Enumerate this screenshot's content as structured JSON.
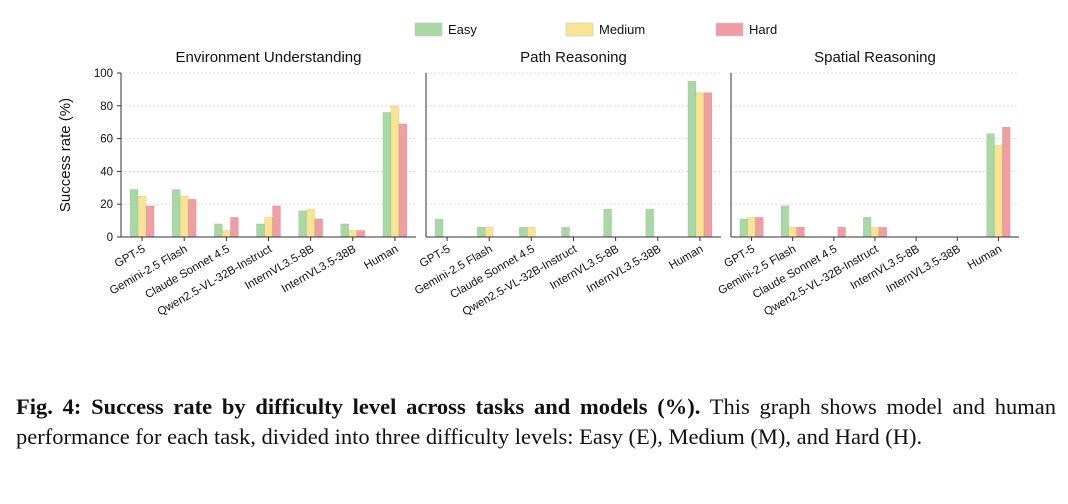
{
  "chart_data": {
    "type": "bar",
    "ylabel": "Success rate (%)",
    "ylim": [
      0,
      100
    ],
    "yticks": [
      0,
      20,
      40,
      60,
      80,
      100
    ],
    "categories": [
      "GPT-5",
      "Gemini-2.5 Flash",
      "Claude Sonnet 4.5",
      "Qwen2.5-VL-32B-Instruct",
      "InternVL3.5-8B",
      "InternVL3.5-38B",
      "Human"
    ],
    "legend": {
      "placement": "top-center",
      "entries": [
        {
          "name": "Easy",
          "color": "#a8d8a4"
        },
        {
          "name": "Medium",
          "color": "#fbe394"
        },
        {
          "name": "Hard",
          "color": "#ef9ea3"
        }
      ]
    },
    "panels": [
      {
        "title": "Environment Understanding",
        "series": [
          {
            "name": "Easy",
            "values": [
              29,
              29,
              8,
              8,
              16,
              8,
              76
            ]
          },
          {
            "name": "Medium",
            "values": [
              25,
              25,
              4,
              12,
              17,
              4,
              80
            ]
          },
          {
            "name": "Hard",
            "values": [
              19,
              23,
              12,
              19,
              11,
              4,
              69
            ]
          }
        ]
      },
      {
        "title": "Path Reasoning",
        "series": [
          {
            "name": "Easy",
            "values": [
              11,
              6,
              6,
              6,
              17,
              17,
              95
            ]
          },
          {
            "name": "Medium",
            "values": [
              0,
              6,
              6,
              0,
              0,
              0,
              88
            ]
          },
          {
            "name": "Hard",
            "values": [
              0,
              0,
              0,
              0,
              0,
              0,
              88
            ]
          }
        ]
      },
      {
        "title": "Spatial Reasoning",
        "series": [
          {
            "name": "Easy",
            "values": [
              11,
              19,
              0,
              12,
              0,
              0,
              63
            ]
          },
          {
            "name": "Medium",
            "values": [
              12,
              6,
              0,
              6,
              0,
              0,
              56
            ]
          },
          {
            "name": "Hard",
            "values": [
              12,
              6,
              6,
              6,
              0,
              0,
              67
            ]
          }
        ]
      }
    ]
  },
  "caption": {
    "label": "Fig. 4: Success rate by difficulty level across tasks and models (%).",
    "text": " This graph shows model and human performance for each task, divided into three difficulty levels: Easy (E), Medium (M), and Hard (H)."
  }
}
